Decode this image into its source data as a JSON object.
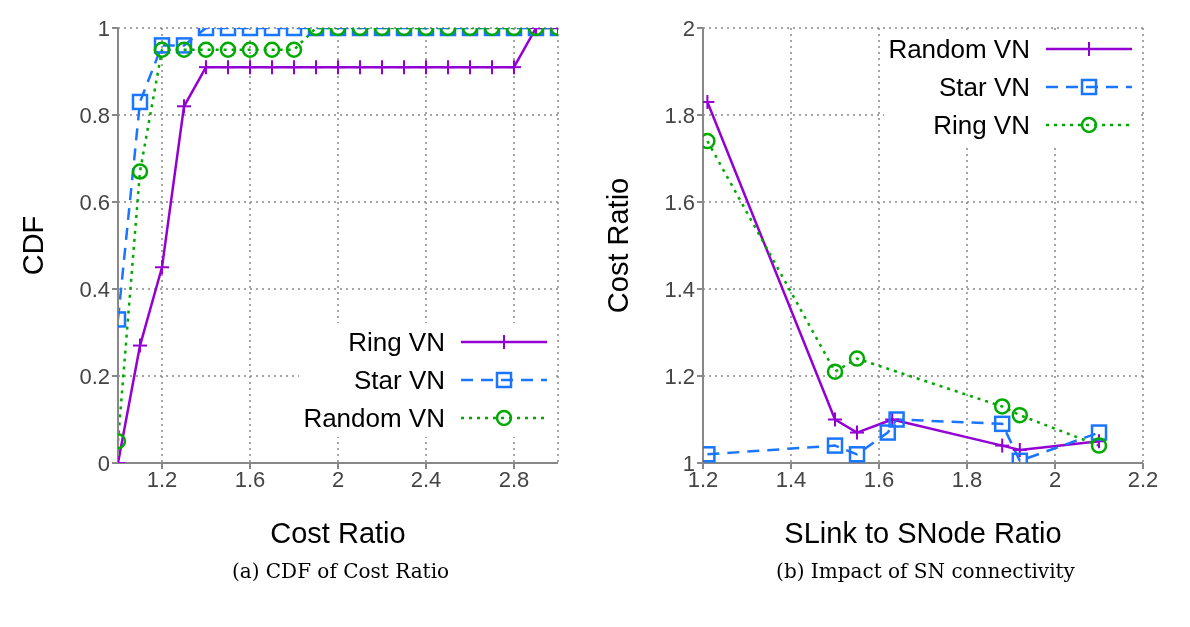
{
  "chart_data": [
    {
      "type": "line",
      "xlabel": "Cost Ratio",
      "ylabel": "CDF",
      "annotations": [
        "(a) CDF of Cost Ratio"
      ],
      "xlim": [
        1,
        3
      ],
      "xticks": [
        1.2,
        1.6,
        2,
        2.4,
        2.8
      ],
      "ylim": [
        0,
        1
      ],
      "yticks": [
        0,
        0.2,
        0.4,
        0.6,
        0.8,
        1
      ],
      "grid": true,
      "legend": "bottom right",
      "series": [
        {
          "name": "Ring VN",
          "color": "#9400d3",
          "marker": "cross",
          "line_style": "solid",
          "x": [
            1,
            1.1,
            1.2,
            1.3,
            1.4,
            1.5,
            1.6,
            1.7,
            1.8,
            1.9,
            2,
            2.1,
            2.2,
            2.3,
            2.4,
            2.5,
            2.6,
            2.7,
            2.8,
            2.9,
            3
          ],
          "values": [
            0,
            0.27,
            0.45,
            0.82,
            0.91,
            0.91,
            0.91,
            0.91,
            0.91,
            0.91,
            0.91,
            0.91,
            0.91,
            0.91,
            0.91,
            0.91,
            0.91,
            0.91,
            0.91,
            1,
            1
          ]
        },
        {
          "name": "Star VN",
          "color": "#1a75ff",
          "marker": "square",
          "line_style": "dashed",
          "x": [
            1,
            1.1,
            1.2,
            1.3,
            1.4,
            1.5,
            1.6,
            1.7,
            1.8,
            1.9,
            2,
            2.1,
            2.2,
            2.3,
            2.4,
            2.5,
            2.6,
            2.7,
            2.8,
            2.9,
            3
          ],
          "values": [
            0.33,
            0.83,
            0.96,
            0.96,
            1,
            1,
            1,
            1,
            1,
            1,
            1,
            1,
            1,
            1,
            1,
            1,
            1,
            1,
            1,
            1,
            1
          ]
        },
        {
          "name": "Random VN",
          "color": "#00aa00",
          "marker": "circle",
          "line_style": "dotted",
          "x": [
            1,
            1.1,
            1.2,
            1.3,
            1.4,
            1.5,
            1.6,
            1.7,
            1.8,
            1.9,
            2,
            2.1,
            2.2,
            2.3,
            2.4,
            2.5,
            2.6,
            2.7,
            2.8,
            2.9,
            3
          ],
          "values": [
            0.05,
            0.67,
            0.95,
            0.95,
            0.95,
            0.95,
            0.95,
            0.95,
            0.95,
            1,
            1,
            1,
            1,
            1,
            1,
            1,
            1,
            1,
            1,
            1,
            1
          ]
        }
      ]
    },
    {
      "type": "line",
      "xlabel": "SLink to SNode Ratio",
      "ylabel": "Cost Ratio",
      "annotations": [
        "(b) Impact of SN connectivity"
      ],
      "xlim": [
        1.2,
        2.2
      ],
      "xticks": [
        1.2,
        1.4,
        1.6,
        1.8,
        2,
        2.2
      ],
      "ylim": [
        1,
        2
      ],
      "yticks": [
        1,
        1.2,
        1.4,
        1.6,
        1.8,
        2
      ],
      "grid": true,
      "legend": "top right",
      "series": [
        {
          "name": "Random VN",
          "color": "#9400d3",
          "marker": "cross",
          "line_style": "solid",
          "x": [
            1.21,
            1.5,
            1.55,
            1.63,
            1.88,
            1.92,
            2.1
          ],
          "values": [
            1.83,
            1.1,
            1.07,
            1.1,
            1.04,
            1.03,
            1.05
          ]
        },
        {
          "name": "Star VN",
          "color": "#1a75ff",
          "marker": "square",
          "line_style": "dashed",
          "x": [
            1.21,
            1.5,
            1.55,
            1.62,
            1.64,
            1.88,
            1.92,
            2.1
          ],
          "values": [
            1.02,
            1.04,
            1.02,
            1.07,
            1.1,
            1.09,
            1.005,
            1.07
          ]
        },
        {
          "name": "Ring VN",
          "color": "#00aa00",
          "marker": "circle",
          "line_style": "dotted",
          "x": [
            1.21,
            1.5,
            1.55,
            1.88,
            1.92,
            2.1
          ],
          "values": [
            1.74,
            1.21,
            1.24,
            1.13,
            1.11,
            1.04
          ]
        }
      ]
    }
  ]
}
